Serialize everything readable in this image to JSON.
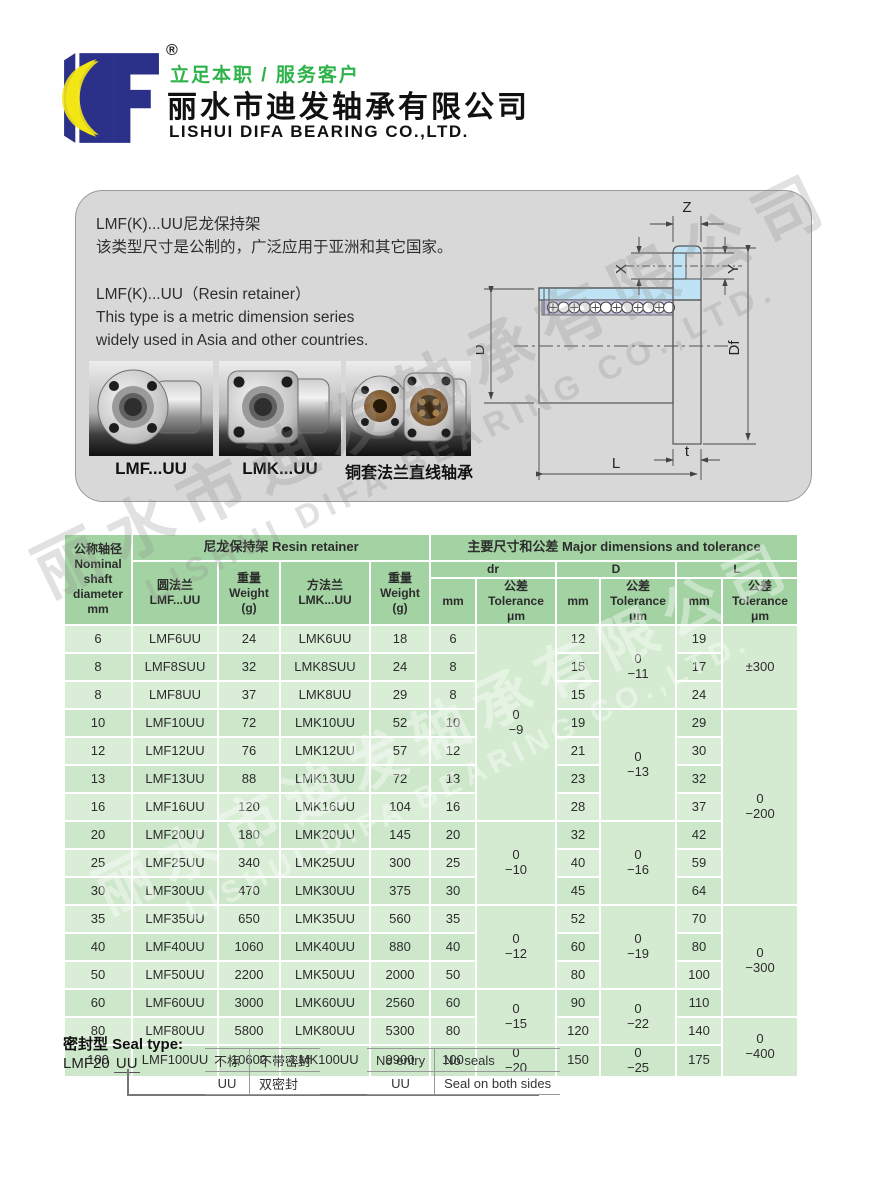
{
  "header": {
    "registered_mark": "®",
    "slogan": "立足本职 / 服务客户",
    "company_cn": "丽水市迪发轴承有限公司",
    "company_en": "LISHUI DIFA BEARING CO.,LTD.",
    "colors": {
      "logo_navy": "#2b3088",
      "logo_yellow": "#f3e515",
      "slogan_green": "#2eb34a"
    }
  },
  "intro": {
    "text": "LMF(K)...UU尼龙保持架\n该类型尺寸是公制的，广泛应用于亚洲和其它国家。\n\nLMF(K)...UU（Resin retainer）\nThis type is a metric dimension series\nwidely used in Asia and other countries.",
    "products": [
      {
        "label": "LMF...UU"
      },
      {
        "label": "LMK...UU"
      },
      {
        "label": "铜套法兰直线轴承"
      }
    ]
  },
  "diagram": {
    "z": "Z",
    "x": "X",
    "y": "Y",
    "d": "D",
    "df": "Df",
    "l": "L",
    "t": "t",
    "colors": {
      "section_blue": "#bfe3f5",
      "retainer_lavender": "#c8c2e2"
    }
  },
  "table": {
    "headers": {
      "nominal": "公称轴径\nNominal\nshaft\ndiameter\nmm",
      "resin_group": "尼龙保持架  Resin retainer",
      "major_group": "主要尺寸和公差 Major dimensions and tolerance",
      "lmf": "圆法兰\nLMF...UU",
      "weight": "重量\nWeight\n(g)",
      "lmk": "方法兰\nLMK...UU",
      "dr": "dr",
      "d": "D",
      "l": "L",
      "mm": "mm",
      "tol": "公差\nTolerance\nμm"
    },
    "colors": {
      "header_green": "#a3d2a3",
      "row_light": "#daeed7",
      "row_dark": "#cde7ca"
    },
    "rows": [
      [
        "6",
        "LMF6UU",
        "24",
        "LMK6UU",
        "18",
        "6",
        {
          "t": "0\n−9",
          "rs": 7
        },
        "12",
        {
          "t": "0\n−11",
          "rs": 3
        },
        "19",
        {
          "t": "±300",
          "rs": 3
        }
      ],
      [
        "8",
        "LMF8SUU",
        "32",
        "LMK8SUU",
        "24",
        "8",
        "15",
        "17"
      ],
      [
        "8",
        "LMF8UU",
        "37",
        "LMK8UU",
        "29",
        "8",
        "15",
        "24"
      ],
      [
        "10",
        "LMF10UU",
        "72",
        "LMK10UU",
        "52",
        "10",
        "19",
        {
          "t": "0\n−13",
          "rs": 4
        },
        "29",
        {
          "t": "0\n−200",
          "rs": 7
        }
      ],
      [
        "12",
        "LMF12UU",
        "76",
        "LMK12UU",
        "57",
        "12",
        "21",
        "30"
      ],
      [
        "13",
        "LMF13UU",
        "88",
        "LMK13UU",
        "72",
        "13",
        "23",
        "32"
      ],
      [
        "16",
        "LMF16UU",
        "120",
        "LMK16UU",
        "104",
        "16",
        "28",
        "37"
      ],
      [
        "20",
        "LMF20UU",
        "180",
        "LMK20UU",
        "145",
        "20",
        {
          "t": "0\n−10",
          "rs": 3
        },
        "32",
        {
          "t": "0\n−16",
          "rs": 3
        },
        "42"
      ],
      [
        "25",
        "LMF25UU",
        "340",
        "LMK25UU",
        "300",
        "25",
        "40",
        "59"
      ],
      [
        "30",
        "LMF30UU",
        "470",
        "LMK30UU",
        "375",
        "30",
        "45",
        "64"
      ],
      [
        "35",
        "LMF35UU",
        "650",
        "LMK35UU",
        "560",
        "35",
        {
          "t": "0\n−12",
          "rs": 3
        },
        "52",
        {
          "t": "0\n−19",
          "rs": 3
        },
        "70",
        {
          "t": "0\n−300",
          "rs": 4
        }
      ],
      [
        "40",
        "LMF40UU",
        "1060",
        "LMK40UU",
        "880",
        "40",
        "60",
        "80"
      ],
      [
        "50",
        "LMF50UU",
        "2200",
        "LMK50UU",
        "2000",
        "50",
        "80",
        "100"
      ],
      [
        "60",
        "LMF60UU",
        "3000",
        "LMK60UU",
        "2560",
        "60",
        {
          "t": "0\n−15",
          "rs": 2
        },
        "90",
        {
          "t": "0\n−22",
          "rs": 2
        },
        "110"
      ],
      [
        "80",
        "LMF80UU",
        "5800",
        "LMK80UU",
        "5300",
        "80",
        "120",
        "140",
        {
          "t": "0\n−400",
          "rs": 2
        }
      ],
      [
        "100",
        "LMF100UU",
        "10600",
        "LMK100UU",
        "9900",
        "100",
        {
          "t": "0\n−20"
        },
        "150",
        {
          "t": "0\n−25"
        },
        "175"
      ]
    ]
  },
  "seal": {
    "title": "密封型 Seal type:",
    "example_prefix": "LMF20",
    "example_suffix": "UU",
    "cn_rows": [
      [
        "不标",
        "不带密封"
      ],
      [
        "UU",
        "双密封"
      ]
    ],
    "en_rows": [
      [
        "No entry",
        "No seals"
      ],
      [
        "UU",
        "Seal on both sides"
      ]
    ]
  }
}
